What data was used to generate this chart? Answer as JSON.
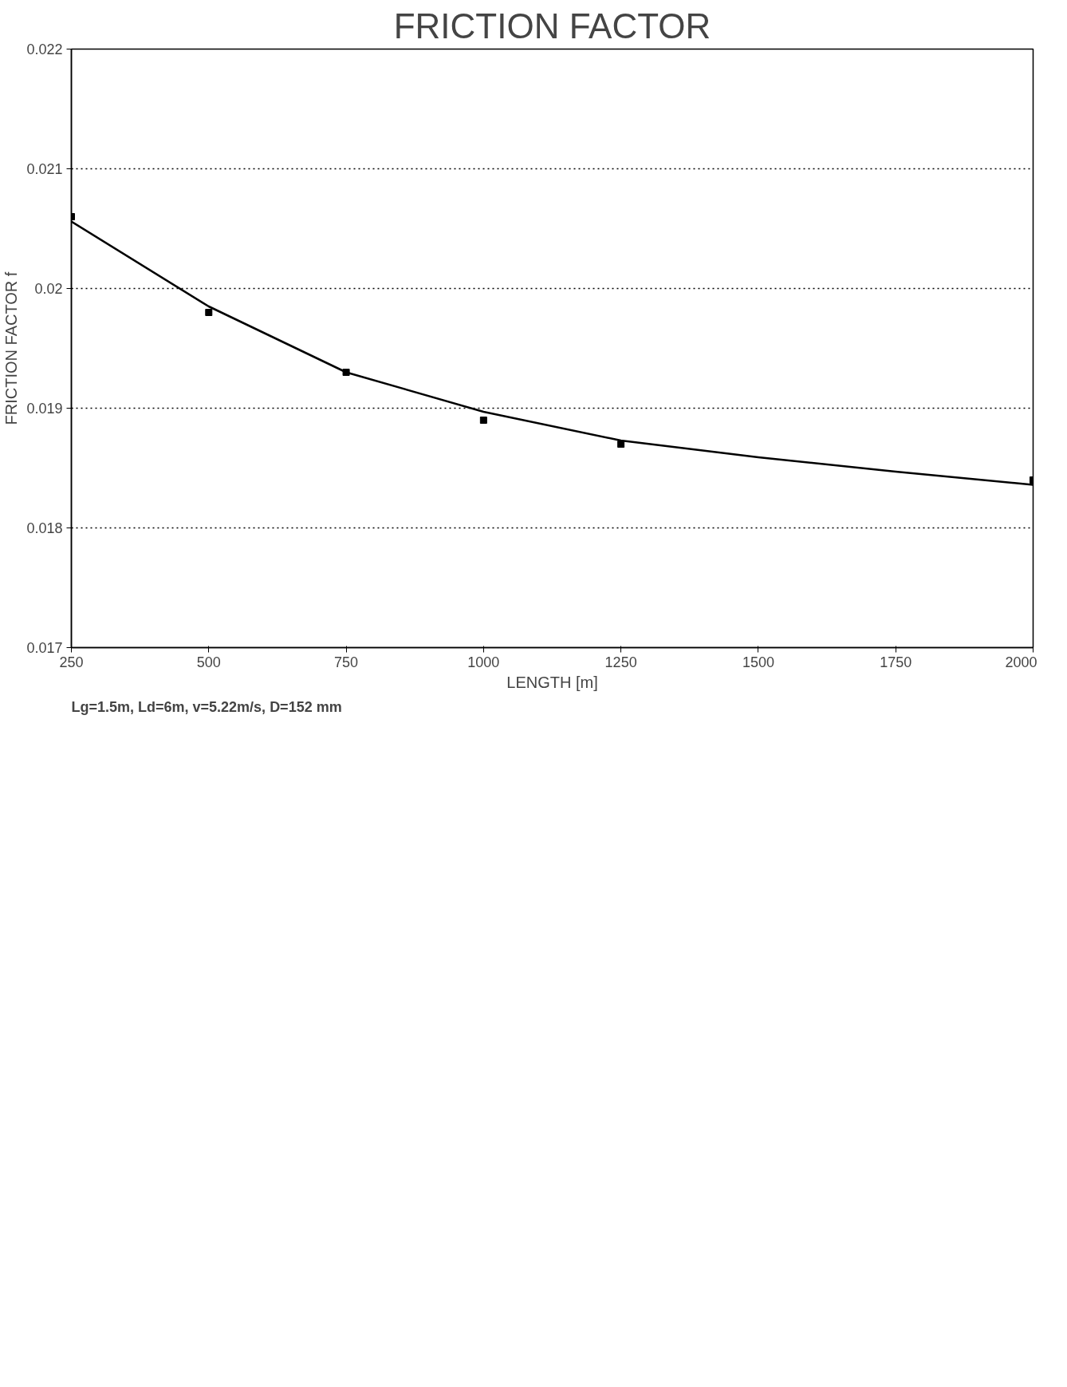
{
  "chart_data": {
    "type": "scatter",
    "title": "FRICTION FACTOR",
    "xlabel": "LENGTH [m]",
    "ylabel": "FRICTION FACTOR f",
    "annotations": [
      "Lg=1.5m, Ld=6m, v=5.22m/s, D=152 mm"
    ],
    "x": [
      250,
      500,
      750,
      1000,
      1250,
      2000
    ],
    "series": [
      {
        "color": "#000000",
        "marker": "square",
        "values": [
          0.0206,
          0.0198,
          0.0193,
          0.0189,
          0.0187,
          0.0184
        ]
      },
      {
        "type": "line",
        "color": "#000000",
        "marker": "none",
        "x": [
          250,
          500,
          750,
          1000,
          1250,
          1500,
          1750,
          2000
        ],
        "values": [
          0.02056,
          0.01985,
          0.0193,
          0.01897,
          0.01873,
          0.01859,
          0.01847,
          0.01836
        ]
      }
    ],
    "xlim": [
      250,
      2000
    ],
    "xticks": [
      250,
      500,
      750,
      1000,
      1250,
      1500,
      1750,
      2000
    ],
    "ylim": [
      0.017,
      0.022
    ],
    "yticks": [
      0.017,
      0.018,
      0.019,
      0.02,
      0.021,
      0.022
    ],
    "grid": "y",
    "line_style": "solid"
  }
}
